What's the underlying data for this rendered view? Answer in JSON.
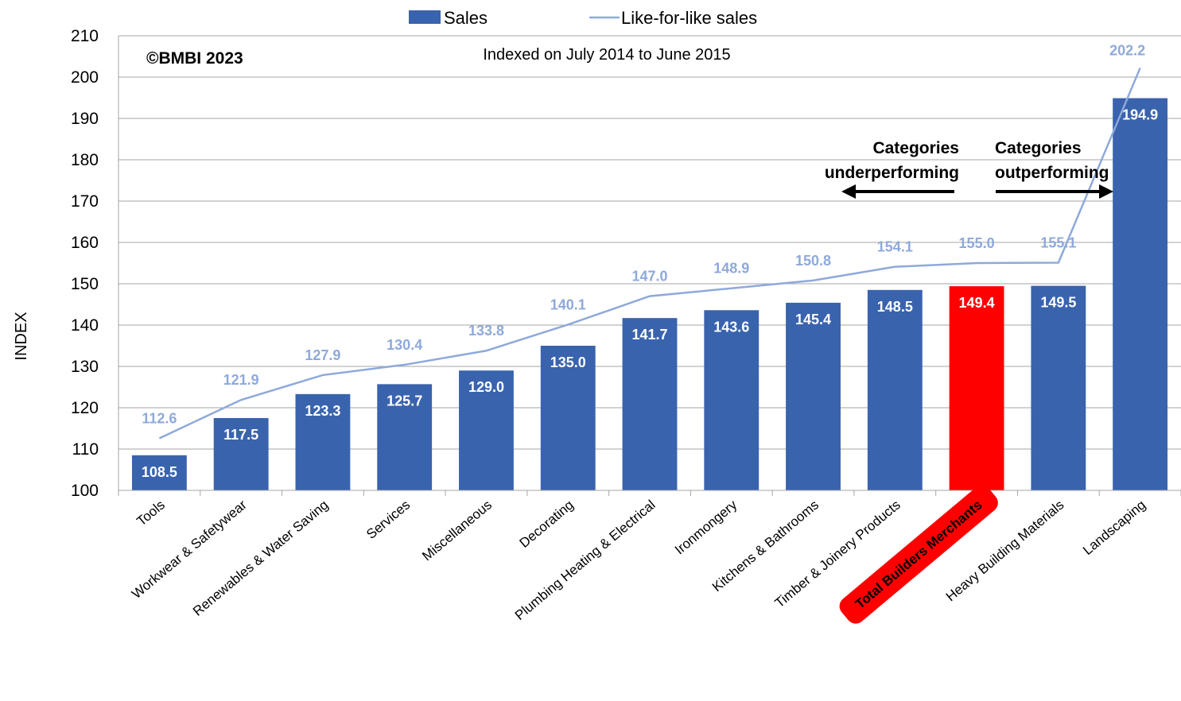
{
  "chart_data": {
    "type": "bar",
    "subtitle": "Indexed on July 2014 to June 2015",
    "copyright": "©BMBI 2023",
    "ylabel": "INDEX",
    "xlabel": "",
    "ylim": [
      100,
      210
    ],
    "yticks": [
      100,
      110,
      120,
      130,
      140,
      150,
      160,
      170,
      180,
      190,
      200,
      210
    ],
    "grid": true,
    "legend_position": "top-center",
    "categories": [
      "Tools",
      "Workwear & Safetywear",
      "Renewables & Water Saving",
      "Services",
      "Miscellaneous",
      "Decorating",
      "Plumbing Heating & Electrical",
      "Ironmongery",
      "Kitchens & Bathrooms",
      "Timber & Joinery Products",
      "Total Builders Merchants",
      "Heavy Building Materials",
      "Landscaping"
    ],
    "highlight_category": "Total Builders Merchants",
    "series": [
      {
        "name": "Sales",
        "type": "bar",
        "color": "#3a63ad",
        "highlight_color": "#ff0000",
        "labels": [
          "108.5",
          "117.5",
          "123.3",
          "125.7",
          "129.0",
          "135.0",
          "141.7",
          "143.6",
          "145.4",
          "148.5",
          "149.4",
          "149.5",
          "194.9"
        ],
        "values": [
          108.5,
          117.5,
          123.3,
          125.7,
          129.0,
          135.0,
          141.7,
          143.6,
          145.4,
          148.5,
          149.4,
          149.5,
          194.9
        ]
      },
      {
        "name": "Like-for-like sales",
        "type": "line",
        "color": "#8ea9db",
        "labels": [
          "112.6",
          "121.9",
          "127.9",
          "130.4",
          "133.8",
          "140.1",
          "147.0",
          "148.9",
          "150.8",
          "154.1",
          "155.0",
          "155.1",
          "202.2"
        ],
        "values": [
          112.6,
          121.9,
          127.9,
          130.4,
          133.8,
          140.1,
          147.0,
          148.9,
          150.8,
          154.1,
          155.0,
          155.1,
          202.2
        ]
      }
    ],
    "annotations": {
      "underperforming": [
        "Categories",
        "underperforming"
      ],
      "outperforming": [
        "Categories",
        "outperforming"
      ]
    }
  },
  "colors": {
    "bar": "#3a63ad",
    "highlight": "#ff0000",
    "line": "#8ea9db",
    "line_label": "#8ea9db",
    "grid": "#a6a6a6",
    "text": "#000000"
  }
}
